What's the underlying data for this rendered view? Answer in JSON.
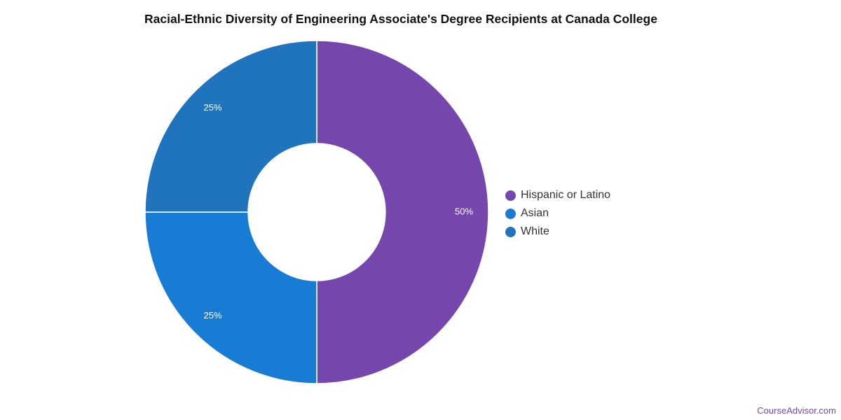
{
  "chart_data": {
    "type": "pie",
    "variant": "donut",
    "title": "Racial-Ethnic Diversity of Engineering Associate's Degree Recipients at Canada College",
    "slices": [
      {
        "label": "Hispanic or Latino",
        "value": 50,
        "display": "50%",
        "color": "#7547ad"
      },
      {
        "label": "Asian",
        "value": 25,
        "display": "25%",
        "color": "#187cd4"
      },
      {
        "label": "White",
        "value": 25,
        "display": "25%",
        "color": "#1f74bd"
      }
    ],
    "legend_position": "right",
    "start_angle": "top",
    "direction": "clockwise"
  },
  "attribution": "CourseAdvisor.com"
}
